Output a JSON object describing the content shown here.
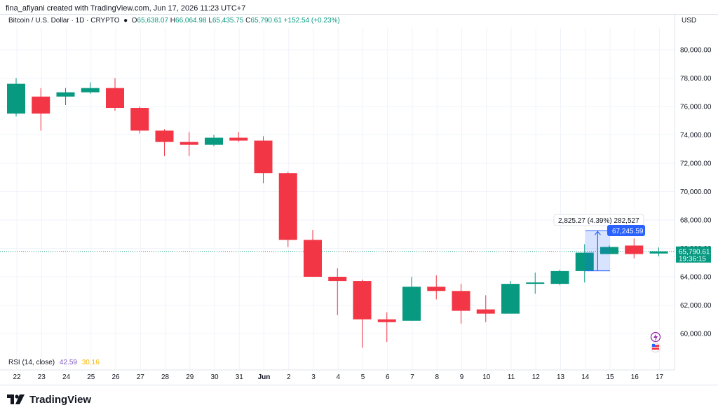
{
  "credit": "fina_afiyani created with TradingView.com, Jun 17, 2026 11:23 UTC+7",
  "legend": {
    "symbol": "Bitcoin / U.S. Dollar · 1D · CRYPTO",
    "o_label": "O",
    "o_value": "65,638.07",
    "h_label": "H",
    "h_value": "66,064.98",
    "l_label": "L",
    "l_value": "65,435.75",
    "c_label": "C",
    "c_value": "65,790.61",
    "change": "+152.54 (+0.23%)"
  },
  "currency": "USD",
  "rsi": {
    "label": "RSI (14, close)",
    "value": "42.59",
    "ma": "30.16"
  },
  "footer": {
    "brand": "TradingView"
  },
  "colors": {
    "up": "#089981",
    "down": "#f23645",
    "measure": "#2962ff"
  },
  "chart_data": {
    "type": "candlestick",
    "y_ticks": [
      "80,000.00",
      "78,000.00",
      "76,000.00",
      "74,000.00",
      "72,000.00",
      "70,000.00",
      "68,000.00",
      "66,000.00",
      "64,000.00",
      "62,000.00",
      "60,000.00"
    ],
    "x_ticks": [
      "22",
      "23",
      "24",
      "25",
      "26",
      "27",
      "28",
      "29",
      "30",
      "31",
      "Jun",
      "2",
      "3",
      "4",
      "5",
      "6",
      "7",
      "8",
      "9",
      "10",
      "11",
      "12",
      "13",
      "14",
      "15",
      "16",
      "17"
    ],
    "ylim": [
      58500,
      82500
    ],
    "candles": [
      {
        "date": "May 22",
        "o": 75500,
        "h": 78000,
        "l": 75300,
        "c": 77600
      },
      {
        "date": "May 23",
        "o": 76700,
        "h": 77300,
        "l": 74300,
        "c": 75500
      },
      {
        "date": "May 24",
        "o": 76700,
        "h": 77300,
        "l": 76100,
        "c": 77000
      },
      {
        "date": "May 25",
        "o": 77000,
        "h": 77700,
        "l": 76900,
        "c": 77300
      },
      {
        "date": "May 26",
        "o": 77300,
        "h": 78000,
        "l": 75700,
        "c": 75900
      },
      {
        "date": "May 27",
        "o": 75900,
        "h": 76000,
        "l": 74100,
        "c": 74300
      },
      {
        "date": "May 28",
        "o": 74300,
        "h": 74400,
        "l": 72500,
        "c": 73500
      },
      {
        "date": "May 29",
        "o": 73500,
        "h": 74200,
        "l": 72500,
        "c": 73300
      },
      {
        "date": "May 30",
        "o": 73300,
        "h": 74000,
        "l": 73200,
        "c": 73800
      },
      {
        "date": "May 31",
        "o": 73800,
        "h": 74200,
        "l": 73500,
        "c": 73600
      },
      {
        "date": "Jun 1",
        "o": 73600,
        "h": 73900,
        "l": 70600,
        "c": 71300
      },
      {
        "date": "Jun 2",
        "o": 71300,
        "h": 71400,
        "l": 66100,
        "c": 66600
      },
      {
        "date": "Jun 3",
        "o": 66600,
        "h": 67300,
        "l": 64000,
        "c": 64000
      },
      {
        "date": "Jun 4",
        "o": 64000,
        "h": 64600,
        "l": 61300,
        "c": 63700
      },
      {
        "date": "Jun 5",
        "o": 63700,
        "h": 63800,
        "l": 59000,
        "c": 61000
      },
      {
        "date": "Jun 6",
        "o": 61000,
        "h": 61500,
        "l": 59400,
        "c": 60800
      },
      {
        "date": "Jun 7",
        "o": 60900,
        "h": 64000,
        "l": 60900,
        "c": 63300
      },
      {
        "date": "Jun 8",
        "o": 63300,
        "h": 64100,
        "l": 62400,
        "c": 63000
      },
      {
        "date": "Jun 9",
        "o": 63000,
        "h": 63500,
        "l": 60700,
        "c": 61600
      },
      {
        "date": "Jun 10",
        "o": 61700,
        "h": 62700,
        "l": 60800,
        "c": 61400
      },
      {
        "date": "Jun 11",
        "o": 61400,
        "h": 63700,
        "l": 61400,
        "c": 63500
      },
      {
        "date": "Jun 12",
        "o": 63500,
        "h": 64300,
        "l": 62800,
        "c": 63600
      },
      {
        "date": "Jun 13",
        "o": 63500,
        "h": 64500,
        "l": 63400,
        "c": 64400
      },
      {
        "date": "Jun 14",
        "o": 64400,
        "h": 66300,
        "l": 63600,
        "c": 65700
      },
      {
        "date": "Jun 15",
        "o": 65600,
        "h": 66200,
        "l": 65600,
        "c": 66100
      },
      {
        "date": "Jun 16",
        "o": 66200,
        "h": 66700,
        "l": 65300,
        "c": 65600
      },
      {
        "date": "Jun 17",
        "o": 65638,
        "h": 66065,
        "l": 65436,
        "c": 65791
      }
    ],
    "current_price": {
      "label": "65,790.61",
      "countdown": "19:36:15",
      "value": 65790.61
    },
    "measure": {
      "text": "2,825.27 (4.39%) 282,527",
      "target_label": "67,245.59",
      "from": 64420,
      "to": 67245.59,
      "start": "Jun 14",
      "end": "Jun 15"
    }
  }
}
